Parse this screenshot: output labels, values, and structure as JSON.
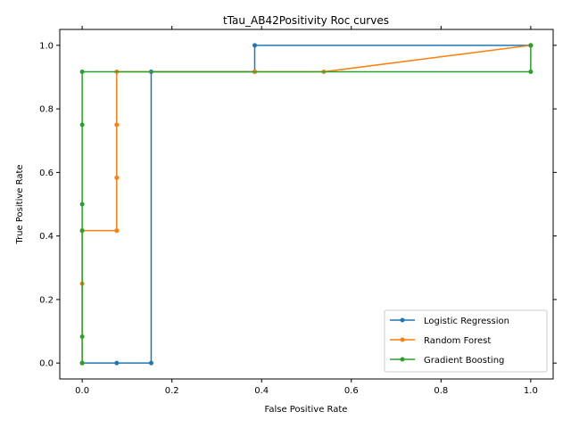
{
  "chart_data": {
    "type": "line",
    "title": "tTau_AB42Positivity Roc curves",
    "xlabel": "False Positive Rate",
    "ylabel": "True Positive Rate",
    "xlim": [
      -0.05,
      1.05
    ],
    "ylim": [
      -0.05,
      1.05
    ],
    "xticks": [
      0.0,
      0.2,
      0.4,
      0.6,
      0.8,
      1.0
    ],
    "yticks": [
      0.0,
      0.2,
      0.4,
      0.6,
      0.8,
      1.0
    ],
    "xtick_labels": [
      "0.0",
      "0.2",
      "0.4",
      "0.6",
      "0.8",
      "1.0"
    ],
    "ytick_labels": [
      "0.0",
      "0.2",
      "0.4",
      "0.6",
      "0.8",
      "1.0"
    ],
    "grid": false,
    "legend_position": "lower-right",
    "series": [
      {
        "name": "Logistic Regression",
        "color": "#1f77b4",
        "x": [
          0.0,
          0.0769,
          0.1538,
          0.1538,
          0.3846,
          0.3846,
          1.0,
          1.0
        ],
        "y": [
          0.0,
          0.0,
          0.0,
          0.9167,
          0.9167,
          1.0,
          1.0,
          1.0
        ]
      },
      {
        "name": "Random Forest",
        "color": "#ff7f0e",
        "x": [
          0.0,
          0.0,
          0.0,
          0.0769,
          0.0769,
          0.0769,
          0.0769,
          0.3846,
          0.5385,
          1.0
        ],
        "y": [
          0.0,
          0.25,
          0.4167,
          0.4167,
          0.5833,
          0.75,
          0.9167,
          0.9167,
          0.9167,
          1.0
        ]
      },
      {
        "name": "Gradient Boosting",
        "color": "#2ca02c",
        "x": [
          0.0,
          0.0,
          0.0,
          0.0,
          0.0,
          0.0,
          1.0,
          1.0
        ],
        "y": [
          0.0,
          0.0833,
          0.4167,
          0.5,
          0.75,
          0.9167,
          0.9167,
          1.0
        ]
      }
    ]
  }
}
